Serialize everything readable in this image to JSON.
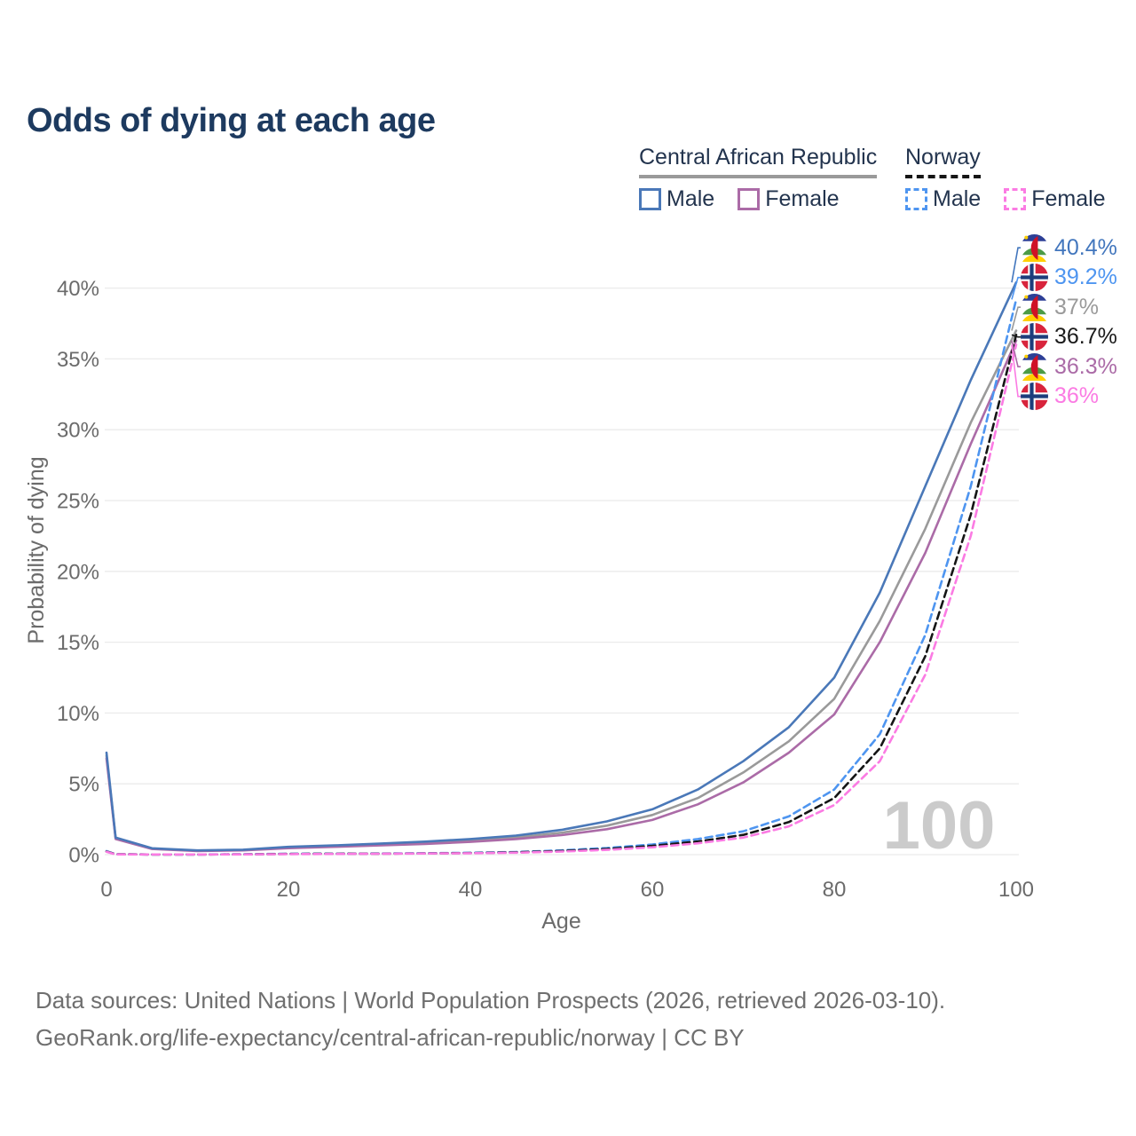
{
  "title": {
    "text": "Odds of dying at each age",
    "color": "#1d3a5f"
  },
  "legend": {
    "text_color": "#23344e",
    "groups": [
      {
        "label": "Central African Republic",
        "line_style": "solid",
        "line_color": "#9a9a9a",
        "items": [
          {
            "label": "Male",
            "color": "#4a78b8",
            "dashed": false
          },
          {
            "label": "Female",
            "color": "#ab6ba7",
            "dashed": false
          }
        ]
      },
      {
        "label": "Norway",
        "line_style": "dashed",
        "line_color": "#151515",
        "items": [
          {
            "label": "Male",
            "color": "#4e95f0",
            "dashed": true
          },
          {
            "label": "Female",
            "color": "#fb7be3",
            "dashed": true
          }
        ]
      }
    ]
  },
  "chart_data": {
    "type": "line",
    "title": "Odds of dying at each age",
    "xlabel": "Age",
    "ylabel": "Probability of dying",
    "xlim": [
      0,
      100
    ],
    "ylim": [
      0,
      43
    ],
    "grid": "horizontal",
    "watermark": "100",
    "x_ticks": [
      0,
      20,
      40,
      60,
      80,
      100
    ],
    "y_ticks": [
      {
        "value": 0,
        "label": "0%"
      },
      {
        "value": 5,
        "label": "5%"
      },
      {
        "value": 10,
        "label": "10%"
      },
      {
        "value": 15,
        "label": "15%"
      },
      {
        "value": 20,
        "label": "20%"
      },
      {
        "value": 25,
        "label": "25%"
      },
      {
        "value": 30,
        "label": "30%"
      },
      {
        "value": 35,
        "label": "35%"
      },
      {
        "value": 40,
        "label": "40%"
      }
    ],
    "x": [
      0,
      1,
      5,
      10,
      15,
      20,
      25,
      30,
      35,
      40,
      45,
      50,
      55,
      60,
      65,
      70,
      75,
      80,
      85,
      90,
      95,
      100
    ],
    "series": [
      {
        "name": "Central African Republic Male",
        "flag": "car",
        "color": "#4a78b8",
        "dashed": false,
        "end_label": "40.4%",
        "label_color": "#4276bd",
        "values": [
          7.2,
          1.2,
          0.45,
          0.3,
          0.35,
          0.55,
          0.65,
          0.78,
          0.92,
          1.1,
          1.35,
          1.75,
          2.35,
          3.2,
          4.6,
          6.6,
          9.0,
          12.5,
          18.5,
          26.0,
          33.5,
          40.4
        ]
      },
      {
        "name": "Norway Male",
        "flag": "norway",
        "color": "#4e95f0",
        "dashed": true,
        "end_label": "39.2%",
        "label_color": "#4e95f0",
        "values": [
          0.25,
          0.03,
          0.01,
          0.01,
          0.03,
          0.06,
          0.07,
          0.08,
          0.1,
          0.13,
          0.19,
          0.3,
          0.47,
          0.72,
          1.1,
          1.65,
          2.7,
          4.6,
          8.5,
          15.5,
          26.0,
          39.2
        ]
      },
      {
        "name": "Central African Republic Both sexes",
        "flag": "car",
        "color": "#9a9a9a",
        "dashed": false,
        "end_label": "37%",
        "label_color": "#9a9a9a",
        "values": [
          7.0,
          1.15,
          0.42,
          0.28,
          0.32,
          0.5,
          0.6,
          0.71,
          0.84,
          1.0,
          1.22,
          1.55,
          2.05,
          2.8,
          4.0,
          5.8,
          8.0,
          11.0,
          16.5,
          23.0,
          30.5,
          37.0
        ]
      },
      {
        "name": "Norway Both sexes",
        "flag": "norway",
        "color": "#151515",
        "dashed": true,
        "end_label": "36.7%",
        "label_color": "#1a1a1a",
        "values": [
          0.22,
          0.03,
          0.01,
          0.01,
          0.02,
          0.05,
          0.06,
          0.07,
          0.09,
          0.11,
          0.16,
          0.26,
          0.4,
          0.62,
          0.93,
          1.4,
          2.3,
          4.0,
          7.5,
          14.0,
          24.0,
          36.7
        ]
      },
      {
        "name": "Central African Republic Female",
        "flag": "car",
        "color": "#ab6ba7",
        "dashed": false,
        "end_label": "36.3%",
        "label_color": "#ab6ba7",
        "values": [
          6.8,
          1.1,
          0.4,
          0.26,
          0.3,
          0.46,
          0.55,
          0.65,
          0.76,
          0.9,
          1.1,
          1.38,
          1.8,
          2.45,
          3.55,
          5.1,
          7.2,
          9.9,
          15.0,
          21.3,
          29.0,
          36.3
        ]
      },
      {
        "name": "Norway Female",
        "flag": "norway",
        "color": "#fb7be3",
        "dashed": true,
        "end_label": "36%",
        "label_color": "#fb7be3",
        "values": [
          0.2,
          0.02,
          0.01,
          0.01,
          0.02,
          0.04,
          0.05,
          0.06,
          0.08,
          0.1,
          0.14,
          0.22,
          0.34,
          0.52,
          0.8,
          1.2,
          2.0,
          3.5,
          6.6,
          12.7,
          22.5,
          36.0
        ]
      }
    ]
  },
  "axis": {
    "tick_color": "#6b6b6b",
    "grid_color": "#ebebeb",
    "watermark_color": "#cbcbcb"
  },
  "footer": {
    "line1": "Data sources: United Nations | World Population Prospects (2026, retrieved 2026-03-10).",
    "line2": "GeoRank.org/life-expectancy/central-african-republic/norway | CC BY",
    "color": "#6f6f6f"
  }
}
